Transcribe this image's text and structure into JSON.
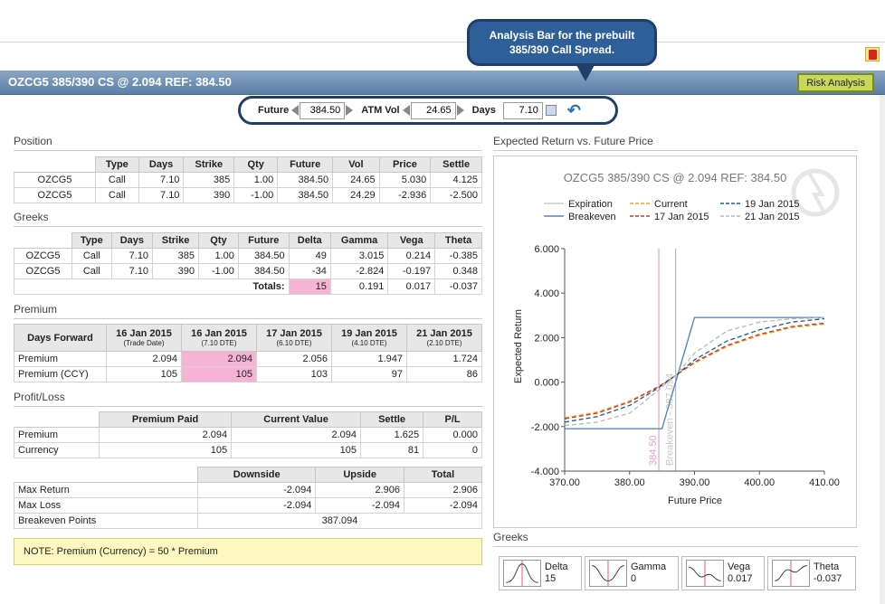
{
  "callout": {
    "line1": "Analysis Bar for the prebuilt",
    "line2": "385/390 Call Spread."
  },
  "title": "OZCG5 385/390 CS @ 2.094 REF: 384.50",
  "risk_button": "Risk Analysis",
  "analysis_bar": {
    "future_label": "Future",
    "future_value": "384.50",
    "atmvol_label": "ATM Vol",
    "atmvol_value": "24.65",
    "days_label": "Days",
    "days_value": "7.10"
  },
  "position": {
    "heading": "Position",
    "headers": [
      "",
      "Type",
      "Days",
      "Strike",
      "Qty",
      "Future",
      "Vol",
      "Price",
      "Settle"
    ],
    "rows": [
      [
        "OZCG5",
        "Call",
        "7.10",
        "385",
        "1.00",
        "384.50",
        "24.65",
        "5.030",
        "4.125"
      ],
      [
        "OZCG5",
        "Call",
        "7.10",
        "390",
        "-1.00",
        "384.50",
        "24.29",
        "-2.936",
        "-2.500"
      ]
    ]
  },
  "greeks": {
    "heading": "Greeks",
    "headers": [
      "",
      "Type",
      "Days",
      "Strike",
      "Qty",
      "Future",
      "Delta",
      "Gamma",
      "Vega",
      "Theta"
    ],
    "rows": [
      [
        "OZCG5",
        "Call",
        "7.10",
        "385",
        "1.00",
        "384.50",
        "49",
        "3.015",
        "0.214",
        "-0.385"
      ],
      [
        "OZCG5",
        "Call",
        "7.10",
        "390",
        "-1.00",
        "384.50",
        "-34",
        "-2.824",
        "-0.197",
        "0.348"
      ]
    ],
    "totals_label": "Totals:",
    "totals": [
      "15",
      "0.191",
      "0.017",
      "-0.037"
    ]
  },
  "premium": {
    "heading": "Premium",
    "corner": "Days Forward",
    "cols": [
      {
        "date": "16 Jan 2015",
        "sub": "(Trade Date)"
      },
      {
        "date": "16 Jan 2015",
        "sub": "(7.10 DTE)"
      },
      {
        "date": "17 Jan 2015",
        "sub": "(6.10 DTE)"
      },
      {
        "date": "19 Jan 2015",
        "sub": "(4.10 DTE)"
      },
      {
        "date": "21 Jan 2015",
        "sub": "(2.10 DTE)"
      }
    ],
    "rows": [
      [
        "Premium",
        "2.094",
        "2.094",
        "2.056",
        "1.947",
        "1.724"
      ],
      [
        "Premium (CCY)",
        "105",
        "105",
        "103",
        "97",
        "86"
      ]
    ]
  },
  "profitloss": {
    "heading": "Profit/Loss",
    "headers": [
      "",
      "Premium Paid",
      "Current Value",
      "Settle",
      "P/L"
    ],
    "rows": [
      [
        "Premium",
        "2.094",
        "2.094",
        "1.625",
        "0.000"
      ],
      [
        "Currency",
        "105",
        "105",
        "81",
        "0"
      ]
    ]
  },
  "returns": {
    "headers": [
      "",
      "Downside",
      "Upside",
      "Total"
    ],
    "rows": [
      [
        "Max Return",
        "-2.094",
        "2.906",
        "2.906"
      ],
      [
        "Max Loss",
        "-2.094",
        "-2.094",
        "-2.094"
      ]
    ],
    "breakeven_label": "Breakeven Points",
    "breakeven_value": "387.094"
  },
  "note": "NOTE: Premium (Currency) = 50 * Premium",
  "chart_section_title": "Expected Return vs. Future Price",
  "chart_data": {
    "type": "line",
    "title": "OZCG5 385/390 CS @ 2.094 REF: 384.50",
    "xlabel": "Future Price",
    "ylabel": "Expected Return",
    "xlim": [
      370,
      410
    ],
    "ylim": [
      -4,
      6
    ],
    "xticks": [
      "370.00",
      "380.00",
      "390.00",
      "400.00",
      "410.00"
    ],
    "yticks": [
      "-4.000",
      "-2.000",
      "0.000",
      "2.000",
      "4.000",
      "6.000"
    ],
    "legend_position": "top",
    "series": [
      {
        "name": "Expiration",
        "color": "#c8c8c8",
        "dash": "",
        "x": [
          370,
          385,
          390,
          410
        ],
        "y": [
          -2.094,
          -2.094,
          2.906,
          2.906
        ]
      },
      {
        "name": "Breakeven",
        "color": "#4a86c8",
        "dash": "",
        "x": [
          370,
          385,
          390,
          410
        ],
        "y": [
          -2.094,
          -2.094,
          2.906,
          2.906
        ]
      },
      {
        "name": "Current",
        "color": "#f0a030",
        "dash": "5,3",
        "x": [
          370,
          375,
          380,
          384.5,
          387.1,
          390,
          395,
          400,
          405,
          410
        ],
        "y": [
          -1.6,
          -1.35,
          -0.85,
          -0.2,
          0.3,
          0.85,
          1.6,
          2.1,
          2.45,
          2.6
        ]
      },
      {
        "name": "17 Jan 2015",
        "color": "#c83a1e",
        "dash": "5,3",
        "x": [
          370,
          375,
          380,
          384.5,
          387.1,
          390,
          395,
          400,
          405,
          410
        ],
        "y": [
          -1.65,
          -1.4,
          -0.9,
          -0.2,
          0.3,
          0.9,
          1.65,
          2.15,
          2.5,
          2.65
        ]
      },
      {
        "name": "19 Jan 2015",
        "color": "#1f5a8a",
        "dash": "5,3",
        "x": [
          370,
          375,
          380,
          384.5,
          387.1,
          390,
          395,
          400,
          405,
          410
        ],
        "y": [
          -1.8,
          -1.55,
          -1.05,
          -0.25,
          0.3,
          1.0,
          1.85,
          2.35,
          2.7,
          2.85
        ]
      },
      {
        "name": "21 Jan 2015",
        "color": "#b8b8b8",
        "dash": "5,3",
        "x": [
          370,
          375,
          380,
          384.5,
          387.1,
          390,
          395,
          400,
          405,
          410
        ],
        "y": [
          -1.95,
          -1.8,
          -1.4,
          -0.35,
          0.3,
          1.3,
          2.3,
          2.7,
          2.85,
          2.9
        ]
      }
    ],
    "annotations": {
      "ref_x": 384.5,
      "ref_label": "384.50",
      "breakeven_x": 387.094,
      "breakeven_label": "Breakeven - 387.094"
    }
  },
  "greeks_mini": {
    "heading": "Greeks",
    "items": [
      {
        "name": "Delta",
        "value": "15"
      },
      {
        "name": "Gamma",
        "value": "0"
      },
      {
        "name": "Vega",
        "value": "0.017"
      },
      {
        "name": "Theta",
        "value": "-0.037"
      }
    ]
  },
  "colors": {
    "title_bar": "#5c7fa8",
    "highlight": "#f7b3d6",
    "risk_button": "#c9d85a"
  }
}
